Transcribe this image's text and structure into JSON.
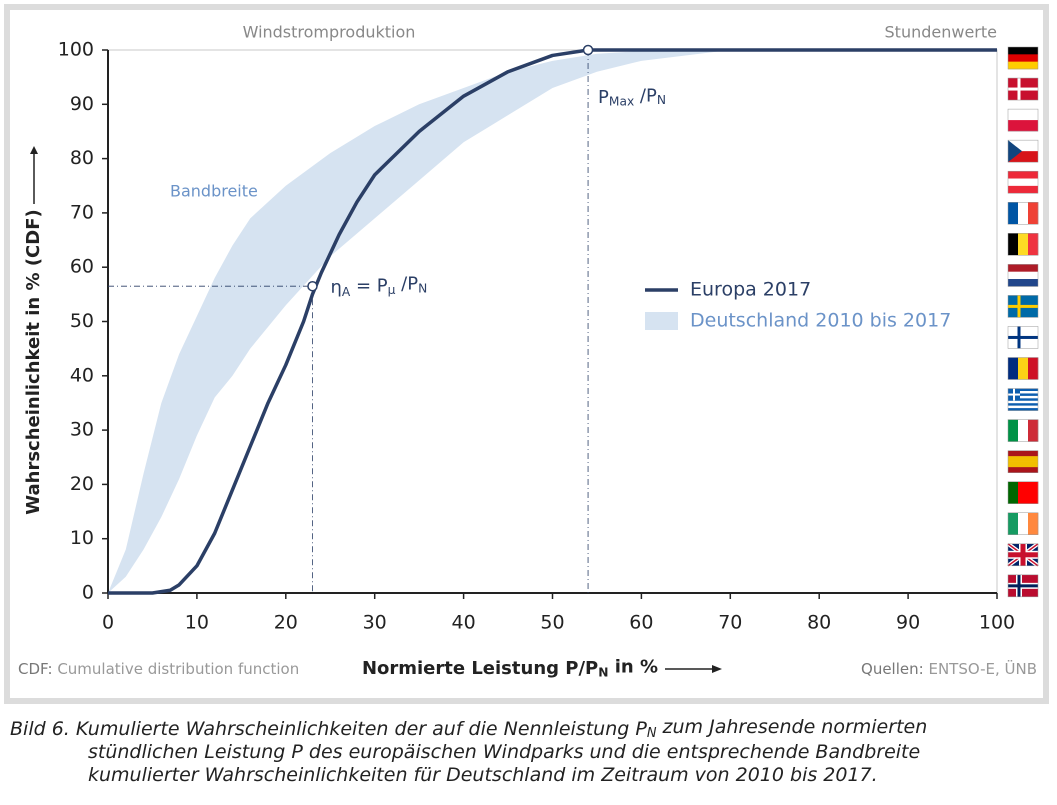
{
  "chart_data": {
    "type": "line",
    "title": "Windstromproduktion",
    "subtitle": "Stundenwerte",
    "y_label": "Wahrscheinlichkeit in % (CDF)",
    "x_label": [
      "Normierte Leistung P/P",
      "N",
      " in %"
    ],
    "xlim": [
      0,
      100
    ],
    "xticks": [
      0,
      10,
      20,
      30,
      40,
      50,
      60,
      70,
      80,
      90,
      100
    ],
    "ylim": [
      0,
      100
    ],
    "yticks": [
      0,
      10,
      20,
      30,
      40,
      50,
      60,
      70,
      80,
      90,
      100
    ],
    "grid": false,
    "series": [
      {
        "name": "Europa 2017",
        "color": "#2b3f66",
        "x": [
          0,
          5,
          7,
          8,
          10,
          12,
          14,
          16,
          18,
          20,
          22,
          23,
          24,
          26,
          28,
          30,
          35,
          40,
          45,
          50,
          54,
          60,
          70,
          100
        ],
        "values": [
          0,
          0,
          0.5,
          1.5,
          5,
          11,
          19,
          27,
          35,
          42,
          50,
          55,
          59,
          66,
          72,
          77,
          85,
          91.5,
          96,
          99,
          100,
          100,
          100,
          100
        ]
      }
    ],
    "band": {
      "name": "Deutschland 2010 bis 2017",
      "color": "#d6e3f1",
      "x": [
        0,
        2,
        4,
        6,
        8,
        10,
        12,
        14,
        16,
        20,
        25,
        30,
        35,
        40,
        45,
        50,
        55,
        60,
        70,
        100
      ],
      "upper": [
        0,
        8,
        22,
        35,
        44,
        51,
        58,
        64,
        69,
        75,
        81,
        86,
        90,
        93,
        96,
        98,
        99.3,
        99.8,
        100,
        100
      ],
      "lower": [
        0,
        3,
        8,
        14,
        21,
        29,
        36,
        40,
        45,
        53,
        62,
        69,
        76,
        83,
        88,
        93,
        96,
        98,
        100,
        100
      ]
    },
    "band_label": "Bandbreite",
    "markers": [
      {
        "x": 23,
        "y": 56.5,
        "label": [
          "η",
          "A",
          " = P",
          "μ",
          " /P",
          "N"
        ]
      },
      {
        "x": 54,
        "y": 100,
        "label": [
          "P",
          "Max",
          " /P",
          "N"
        ]
      }
    ],
    "footer_left": [
      "CDF:",
      "Cumulative distribution function"
    ],
    "footer_right": [
      "Quellen:",
      "ENTSO-E, ÜNB"
    ],
    "caption": [
      [
        "Bild 6. Kumulierte Wahrscheinlichkeiten der auf die Nennleistung P",
        "N",
        " zum Jahresende normierten"
      ],
      [
        "stündlichen Leistung P des europäischen Windparks und die entsprechende Bandbreite"
      ],
      [
        "kumulierter Wahrscheinlichkeiten für Deutschland im Zeitraum von 2010 bis 2017."
      ]
    ]
  }
}
